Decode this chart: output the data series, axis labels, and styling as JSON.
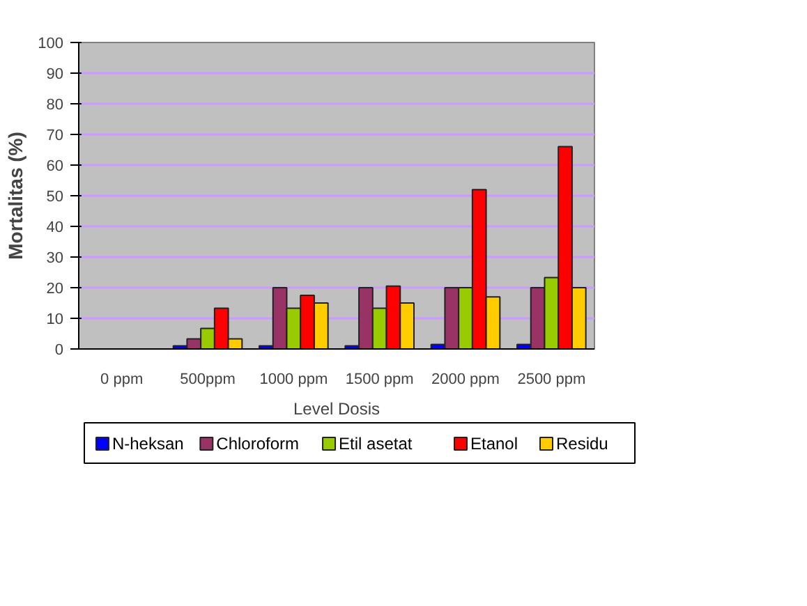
{
  "chart_data": {
    "type": "bar",
    "xlabel": "Level Dosis",
    "ylabel": "Mortalitas (%)",
    "categories": [
      "0 ppm",
      "500ppm",
      "1000 ppm",
      "1500 ppm",
      "2000 ppm",
      "2500 ppm"
    ],
    "series": [
      {
        "name": "N-heksan",
        "color": "#0000ff",
        "values": [
          0,
          1,
          1,
          1,
          1.5,
          1.5
        ]
      },
      {
        "name": "Chloroform",
        "color": "#993366",
        "values": [
          0,
          3.3,
          20,
          20,
          20,
          20
        ]
      },
      {
        "name": "Etil asetat",
        "color": "#99cc00",
        "values": [
          0,
          6.7,
          13.3,
          13.3,
          20,
          23.3
        ]
      },
      {
        "name": "Etanol",
        "color": "#ff0000",
        "values": [
          0,
          13.3,
          17.5,
          20.5,
          52,
          66
        ]
      },
      {
        "name": "Residu",
        "color": "#ffcc00",
        "values": [
          0,
          3.3,
          15,
          15,
          17,
          20
        ]
      }
    ],
    "ylim": [
      0,
      100
    ],
    "yticks": [
      0,
      10,
      20,
      30,
      40,
      50,
      60,
      70,
      80,
      90,
      100
    ],
    "grid": "y",
    "legend": "bottom"
  }
}
